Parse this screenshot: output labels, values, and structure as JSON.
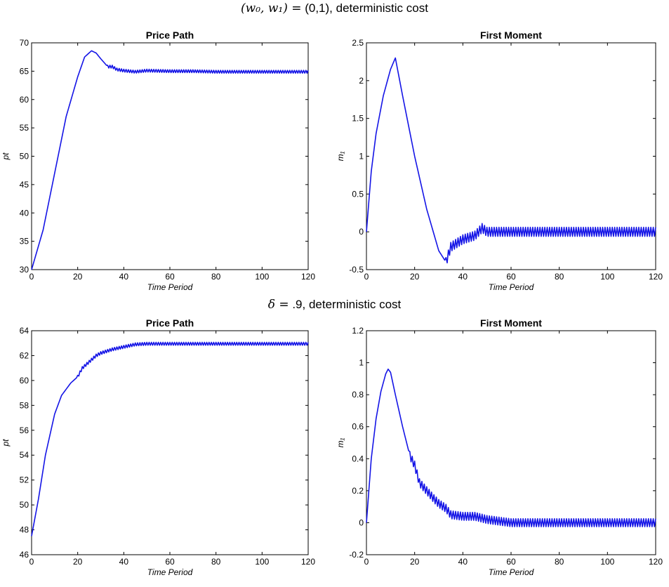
{
  "figure": {
    "row_titles": [
      {
        "math": "(w₀, w₁) =",
        "text": " (0,1), deterministic cost"
      },
      {
        "math": "δ =",
        "text": " .9, deterministic cost"
      }
    ]
  },
  "chart_data": [
    {
      "type": "line",
      "title": "Price Path",
      "xlabel": "Time Period",
      "ylabel": "pt",
      "xlim": [
        0,
        120
      ],
      "ylim": [
        30,
        70
      ],
      "xticks": [
        0,
        20,
        40,
        60,
        80,
        100,
        120
      ],
      "yticks": [
        30,
        35,
        40,
        45,
        50,
        55,
        60,
        65,
        70
      ],
      "tick_labels_x": [
        "0",
        "20",
        "40",
        "60",
        "80",
        "100",
        "120"
      ],
      "tick_labels_y": [
        "30",
        "35",
        "40",
        "45",
        "50",
        "55",
        "60",
        "65",
        "70"
      ],
      "color": "#1414e6",
      "grid": false,
      "x": [
        0,
        5,
        10,
        15,
        20,
        23,
        26,
        28,
        30,
        33,
        35,
        37,
        40,
        45,
        50,
        60,
        70,
        80,
        90,
        100,
        110,
        120
      ],
      "y": [
        30,
        37,
        47,
        57,
        64,
        67.5,
        68.6,
        68.2,
        67.2,
        65.8,
        65.8,
        65.3,
        65.1,
        64.9,
        65.1,
        65.0,
        65.0,
        64.9,
        64.9,
        64.9,
        64.9,
        64.9
      ],
      "oscillation": {
        "from_x": 33,
        "amplitude": 0.25
      }
    },
    {
      "type": "line",
      "title": "First Moment",
      "xlabel": "Time Period",
      "ylabel": "m₁",
      "xlim": [
        0,
        120
      ],
      "ylim": [
        -0.5,
        2.5
      ],
      "xticks": [
        0,
        20,
        40,
        60,
        80,
        100,
        120
      ],
      "yticks": [
        -0.5,
        0,
        0.5,
        1,
        1.5,
        2,
        2.5
      ],
      "tick_labels_x": [
        "0",
        "20",
        "40",
        "60",
        "80",
        "100",
        "120"
      ],
      "tick_labels_y": [
        "-0.5",
        "0",
        "0.5",
        "1",
        "1.5",
        "2",
        "2.5"
      ],
      "color": "#1414e6",
      "grid": false,
      "x": [
        0,
        2,
        4,
        7,
        10,
        12,
        15,
        20,
        25,
        30,
        33,
        35,
        40,
        45,
        48,
        50,
        60,
        70,
        80,
        90,
        100,
        110,
        120
      ],
      "y": [
        0,
        0.8,
        1.3,
        1.8,
        2.15,
        2.3,
        1.8,
        1.0,
        0.3,
        -0.25,
        -0.4,
        -0.2,
        -0.1,
        -0.05,
        0.05,
        0.0,
        0.0,
        0.0,
        0.0,
        0.0,
        0.0,
        0.0,
        0.0
      ],
      "oscillation": {
        "from_x": 33,
        "amplitude": 0.06
      }
    },
    {
      "type": "line",
      "title": "Price Path",
      "xlabel": "Time Period",
      "ylabel": "pt",
      "xlim": [
        0,
        120
      ],
      "ylim": [
        46,
        64
      ],
      "xticks": [
        0,
        20,
        40,
        60,
        80,
        100,
        120
      ],
      "yticks": [
        46,
        48,
        50,
        52,
        54,
        56,
        58,
        60,
        62,
        64
      ],
      "tick_labels_x": [
        "0",
        "20",
        "40",
        "60",
        "80",
        "100",
        "120"
      ],
      "tick_labels_y": [
        "46",
        "48",
        "50",
        "52",
        "54",
        "56",
        "58",
        "60",
        "62",
        "64"
      ],
      "color": "#1414e6",
      "grid": false,
      "x": [
        0,
        3,
        6,
        10,
        13,
        17,
        20,
        22,
        25,
        28,
        30,
        35,
        40,
        45,
        50,
        60,
        70,
        80,
        90,
        100,
        110,
        120
      ],
      "y": [
        47.5,
        50.5,
        54.0,
        57.3,
        58.8,
        59.8,
        60.3,
        61.0,
        61.5,
        62.0,
        62.2,
        62.5,
        62.7,
        62.9,
        62.95,
        62.95,
        62.95,
        62.95,
        62.95,
        62.95,
        62.95,
        62.95
      ],
      "oscillation": {
        "from_x": 20,
        "amplitude": 0.12
      }
    },
    {
      "type": "line",
      "title": "First Moment",
      "xlabel": "Time Period",
      "ylabel": "m₁",
      "xlim": [
        0,
        120
      ],
      "ylim": [
        -0.2,
        1.2
      ],
      "xticks": [
        0,
        20,
        40,
        60,
        80,
        100,
        120
      ],
      "yticks": [
        -0.2,
        0,
        0.2,
        0.4,
        0.6,
        0.8,
        1,
        1.2
      ],
      "tick_labels_x": [
        "0",
        "20",
        "40",
        "60",
        "80",
        "100",
        "120"
      ],
      "tick_labels_y": [
        "-0.2",
        "0",
        "0.2",
        "0.4",
        "0.6",
        "0.8",
        "1",
        "1.2"
      ],
      "color": "#1414e6",
      "grid": false,
      "x": [
        0,
        2,
        4,
        6,
        8,
        9,
        10,
        12,
        15,
        18,
        20,
        22,
        25,
        28,
        30,
        33,
        35,
        40,
        45,
        50,
        55,
        60,
        70,
        80,
        90,
        100,
        110,
        120
      ],
      "y": [
        0,
        0.4,
        0.65,
        0.82,
        0.93,
        0.96,
        0.94,
        0.8,
        0.6,
        0.42,
        0.36,
        0.25,
        0.2,
        0.15,
        0.12,
        0.09,
        0.05,
        0.04,
        0.04,
        0.02,
        0.01,
        0.0,
        0.0,
        0.0,
        0.0,
        0.0,
        0.0,
        0.0
      ],
      "oscillation": {
        "from_x": 18,
        "amplitude": 0.025
      }
    }
  ]
}
